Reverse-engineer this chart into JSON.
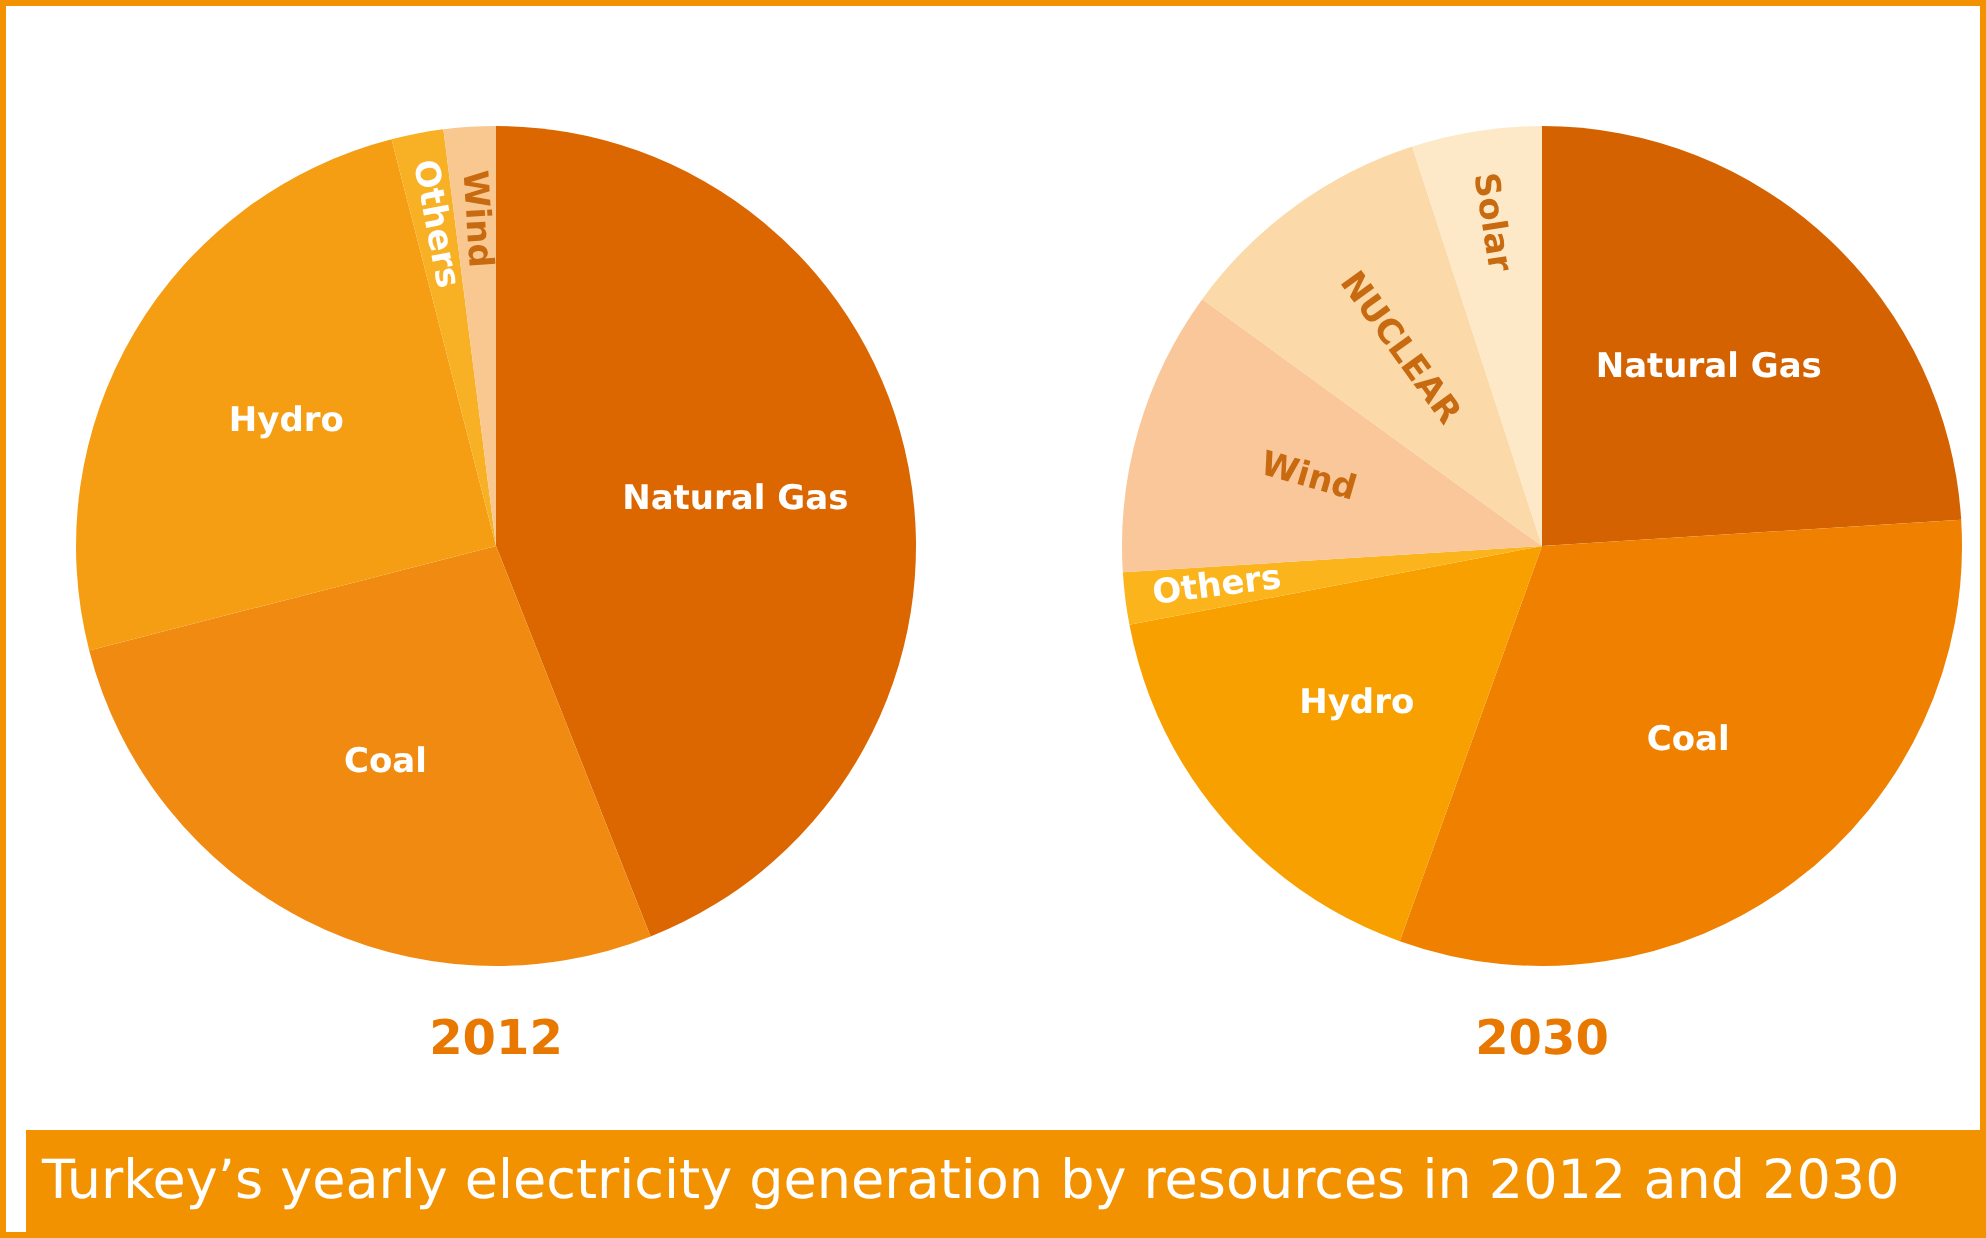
{
  "chart_data": [
    {
      "type": "pie",
      "title": "2012",
      "categories": [
        "Natural Gas",
        "Coal",
        "Hydro",
        "Others",
        "Wind"
      ],
      "values": [
        44,
        27,
        25,
        2,
        2
      ],
      "colors": [
        "#dc6600",
        "#f08a10",
        "#f59e14",
        "#f8b024",
        "#f8c890"
      ],
      "legend": false,
      "annotations": [
        "Turkey’s yearly electricity generation by resources in 2012 and 2030"
      ]
    },
    {
      "type": "pie",
      "title": "2030",
      "categories": [
        "Natural Gas",
        "Coal",
        "Hydro",
        "Others",
        "Wind",
        "NUCLEAR",
        "Solar"
      ],
      "values": [
        24,
        31.5,
        16.5,
        2,
        11,
        10,
        5
      ],
      "colors": [
        "#d46200",
        "#f08000",
        "#f8a000",
        "#fbb41c",
        "#f9c79a",
        "#fbd9a8",
        "#fde9c8"
      ],
      "legend": false
    }
  ]
}
